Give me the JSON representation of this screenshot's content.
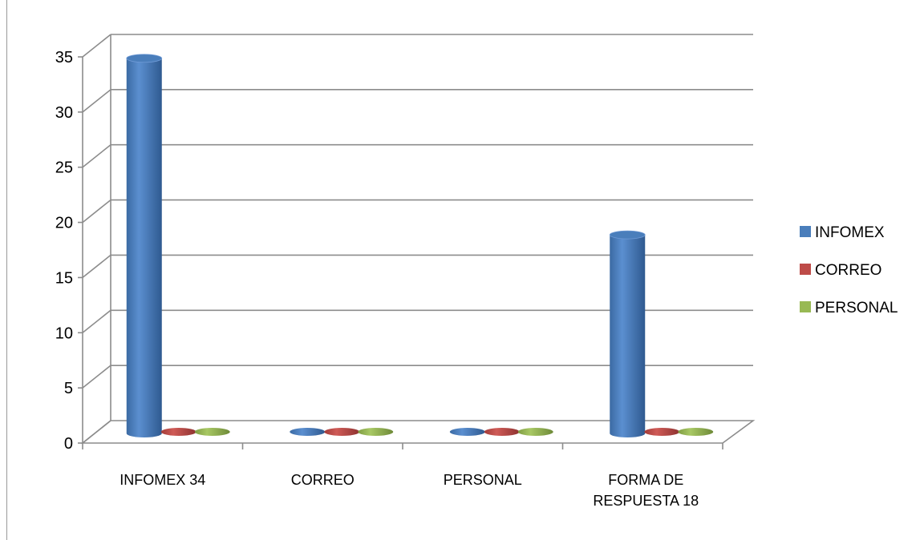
{
  "chart_data": {
    "type": "bar",
    "title": "",
    "xlabel": "",
    "ylabel": "",
    "categories": [
      "INFOMEX 34",
      "CORREO",
      "PERSONAL",
      "FORMA DE RESPUESTA 18"
    ],
    "category_lines": [
      [
        "INFOMEX 34"
      ],
      [
        "CORREO"
      ],
      [
        "PERSONAL"
      ],
      [
        "FORMA DE",
        "RESPUESTA 18"
      ]
    ],
    "series": [
      {
        "name": "INFOMEX",
        "values": [
          34,
          0,
          0,
          18
        ],
        "color": "#4a7ebb"
      },
      {
        "name": "CORREO",
        "values": [
          0,
          0,
          0,
          0
        ],
        "color": "#be4b48"
      },
      {
        "name": "PERSONAL",
        "values": [
          0,
          0,
          0,
          0
        ],
        "color": "#98b954"
      }
    ],
    "ylim": [
      0,
      35
    ],
    "yticks": [
      0,
      5,
      10,
      15,
      20,
      25,
      30,
      35
    ],
    "grid": true,
    "legend": "right",
    "style": "3d-cylinder"
  }
}
